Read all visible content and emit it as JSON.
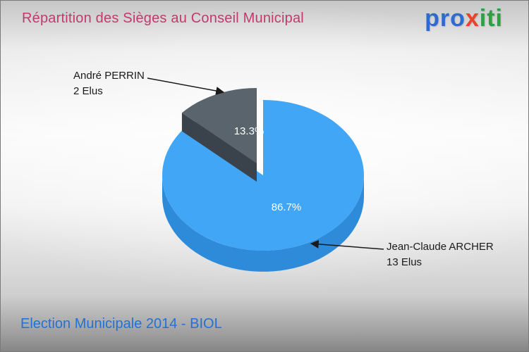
{
  "title": "Répartition des Sièges au Conseil Municipal",
  "logo": {
    "part1": "pro",
    "part2": "x",
    "part3": "iti",
    "colors": {
      "part1": "#2e6bcd",
      "part2": "#e8432c",
      "part3": "#2fa042"
    }
  },
  "footer": {
    "caption": "Election Municipale 2014 - BIOL"
  },
  "colors": {
    "title": "#c23a6b",
    "footer": "#2471d6",
    "callout_text": "#1a1a1a",
    "leader_line": "#1a1a1a"
  },
  "chart_data": {
    "type": "pie",
    "style": "3d-exploded",
    "title": "Répartition des Sièges au Conseil Municipal",
    "legend_position": "callouts",
    "slices": [
      {
        "name": "Jean-Claude ARCHER",
        "seats_label": "13 Elus",
        "value": 13,
        "percent": 86.7,
        "percent_label": "86.7%",
        "top_color": "#41a6f6",
        "side_color": "#2e8bd9",
        "exploded": false
      },
      {
        "name": "André PERRIN",
        "seats_label": "2 Elus",
        "value": 2,
        "percent": 13.3,
        "percent_label": "13.3%",
        "top_color": "#5a646c",
        "side_color": "#3a434b",
        "exploded": true
      }
    ]
  }
}
